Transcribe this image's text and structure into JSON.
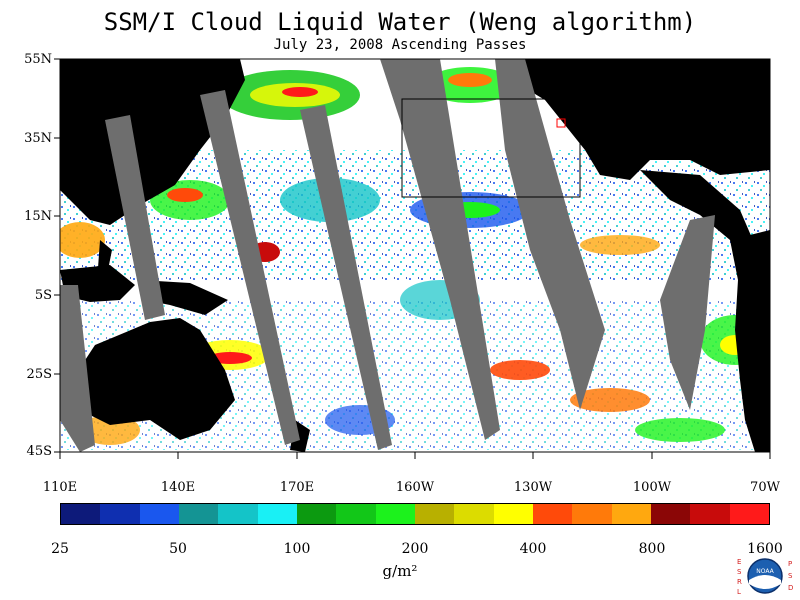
{
  "title": "SSM/I Cloud Liquid Water (Weng algorithm)",
  "subtitle": "July 23, 2008  Ascending Passes",
  "latitude_labels": [
    "55N",
    "35N",
    "15N",
    "5S",
    "25S",
    "45S"
  ],
  "longitude_labels": [
    "110E",
    "140E",
    "170E",
    "160W",
    "130W",
    "100W",
    "70W"
  ],
  "colorbar": {
    "colors": [
      "#0d1a7a",
      "#0f2fb0",
      "#1a57ee",
      "#149494",
      "#14c4c8",
      "#19f0f5",
      "#0c9a10",
      "#12c718",
      "#1cf21c",
      "#b8b000",
      "#dcdc00",
      "#ffff00",
      "#ff4a0a",
      "#ff7a0a",
      "#ffa80f",
      "#8b0606",
      "#c80b0b",
      "#ff1a1a"
    ],
    "tick_labels": [
      "25",
      "50",
      "100",
      "200",
      "400",
      "800",
      "1600"
    ],
    "units": "g/m²"
  },
  "map_colors": {
    "land": "#000000",
    "swath_gap": "#6e6e6e",
    "ocean_clear": "#ffffff",
    "box": "#000000",
    "marker": "#ff0000"
  },
  "logo": {
    "left_letters": "ESRL",
    "right_letters": "PSD",
    "badge_text": "NOAA"
  }
}
